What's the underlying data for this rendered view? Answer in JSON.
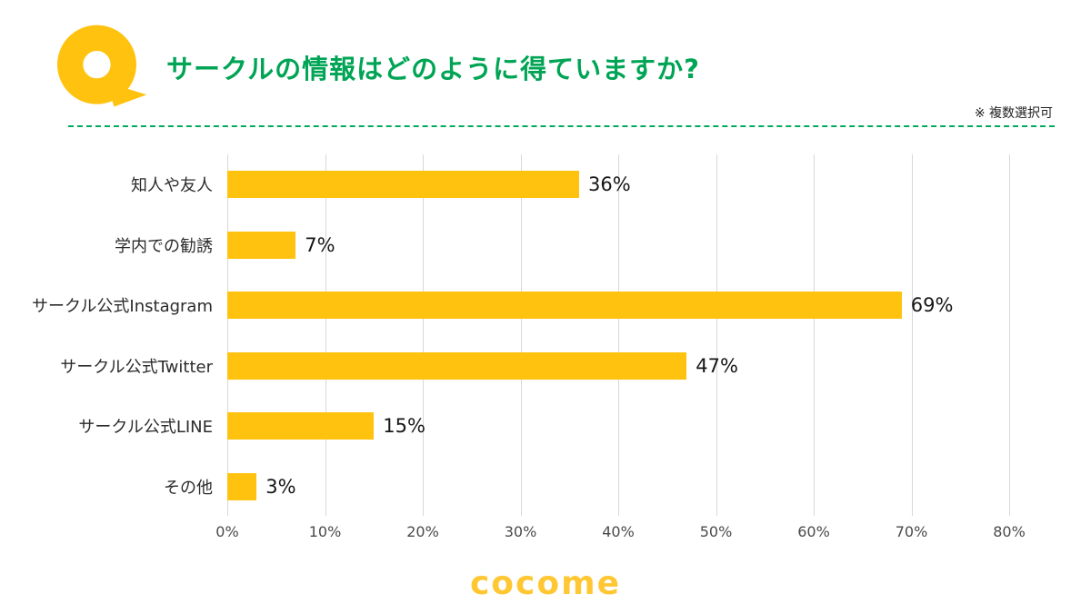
{
  "header": {
    "title": "サークルの情報はどのように得ていますか?",
    "note": "※ 複数選択可",
    "accent_green": "#00a455",
    "accent_yellow": "#ffc20e"
  },
  "chart_data": {
    "type": "bar",
    "orientation": "horizontal",
    "title": "サークルの情報はどのように得ていますか?",
    "categories": [
      "知人や友人",
      "学内での勧誘",
      "サークル公式Instagram",
      "サークル公式Twitter",
      "サークル公式LINE",
      "その他"
    ],
    "values": [
      36,
      7,
      69,
      47,
      15,
      3
    ],
    "value_labels": [
      "36%",
      "7%",
      "69%",
      "47%",
      "15%",
      "3%"
    ],
    "xlim": [
      0,
      80
    ],
    "x_ticks": [
      "0%",
      "10%",
      "20%",
      "30%",
      "40%",
      "50%",
      "60%",
      "70%",
      "80%"
    ],
    "bar_color": "#ffc20e",
    "grid": true,
    "legend": false
  },
  "footer": {
    "logo_text": "cocome"
  }
}
